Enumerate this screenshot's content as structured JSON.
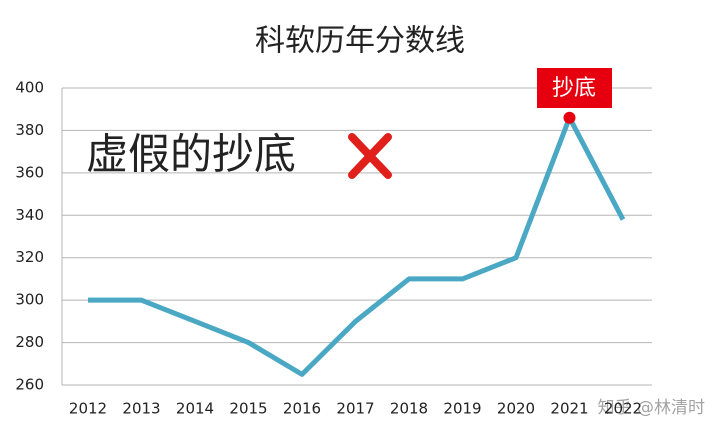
{
  "chart_data": {
    "type": "line",
    "title": "科软历年分数线",
    "x": [
      2012,
      2013,
      2014,
      2015,
      2016,
      2017,
      2018,
      2019,
      2020,
      2021,
      2022
    ],
    "series": [
      {
        "color": "#4aa8c4",
        "values": [
          300,
          300,
          290,
          280,
          265,
          290,
          310,
          310,
          320,
          386,
          338
        ]
      }
    ],
    "ylim": [
      260,
      400
    ],
    "yticks": [
      260,
      280,
      300,
      320,
      340,
      360,
      380,
      400
    ],
    "grid": true,
    "annotations": [
      "虚假的抄底",
      "抄底"
    ],
    "watermark": "知乎 @林清时"
  }
}
